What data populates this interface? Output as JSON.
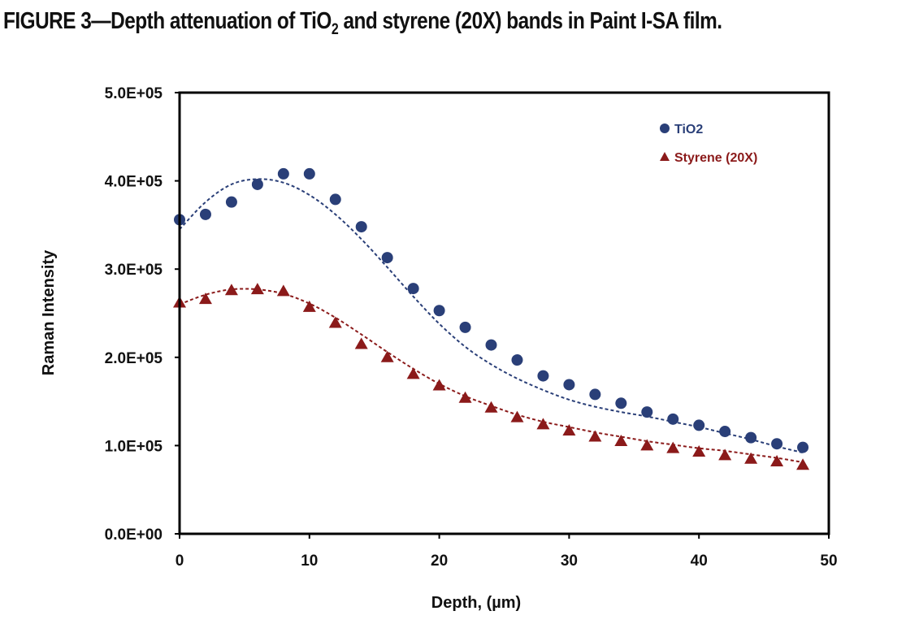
{
  "figure_title": {
    "prefix": "FIGURE 3—Depth attenuation of TiO",
    "subscript": "2",
    "suffix": " and styrene (20X) bands in Paint I-SA film."
  },
  "chart_data": {
    "type": "scatter",
    "title": "FIGURE 3—Depth attenuation of TiO2 and styrene (20X) bands in Paint I-SA film.",
    "xlabel": "Depth, (µm)",
    "ylabel": "Raman Intensity",
    "xlim": [
      0,
      50
    ],
    "ylim": [
      0,
      500000
    ],
    "x_ticks": [
      0,
      10,
      20,
      30,
      40,
      50
    ],
    "x_tick_labels": [
      "0",
      "10",
      "20",
      "30",
      "40",
      "50"
    ],
    "y_ticks": [
      0,
      100000,
      200000,
      300000,
      400000,
      500000
    ],
    "y_tick_labels": [
      "0.0E+00",
      "1.0E+05",
      "2.0E+05",
      "3.0E+05",
      "4.0E+05",
      "5.0E+05"
    ],
    "grid": false,
    "legend_position": "top-right",
    "x": [
      0,
      2,
      4,
      6,
      8,
      10,
      12,
      14,
      16,
      18,
      20,
      22,
      24,
      26,
      28,
      30,
      32,
      34,
      36,
      38,
      40,
      42,
      44,
      46,
      48
    ],
    "series": [
      {
        "name": "TiO2",
        "marker": "circle",
        "color": "#2a3f78",
        "values": [
          356000,
          362000,
          376000,
          396000,
          408000,
          408000,
          379000,
          348000,
          313000,
          278000,
          253000,
          234000,
          214000,
          197000,
          179000,
          169000,
          158000,
          148000,
          138000,
          130000,
          123000,
          116000,
          109000,
          102000,
          98000
        ],
        "trend": [
          345000,
          376000,
          396000,
          402000,
          398000,
          384000,
          362000,
          334000,
          302000,
          269000,
          238000,
          212000,
          192000,
          176000,
          163000,
          152000,
          144000,
          138000,
          133000,
          127000,
          121000,
          114000,
          107000,
          99000,
          92000
        ]
      },
      {
        "name": "Styrene (20X)",
        "marker": "triangle",
        "color": "#8b1a1a",
        "values": [
          262000,
          266000,
          276000,
          277000,
          275000,
          257000,
          239000,
          215000,
          200000,
          181000,
          168000,
          154000,
          143000,
          132000,
          124000,
          117000,
          110000,
          105000,
          100000,
          97000,
          93000,
          89000,
          85000,
          82000,
          78000
        ],
        "trend": [
          260000,
          271000,
          277000,
          277000,
          272000,
          261000,
          245000,
          226000,
          206000,
          187000,
          170000,
          156000,
          145000,
          135000,
          127000,
          121000,
          115000,
          110000,
          105000,
          101000,
          97000,
          94000,
          90000,
          86000,
          81000
        ]
      }
    ]
  }
}
